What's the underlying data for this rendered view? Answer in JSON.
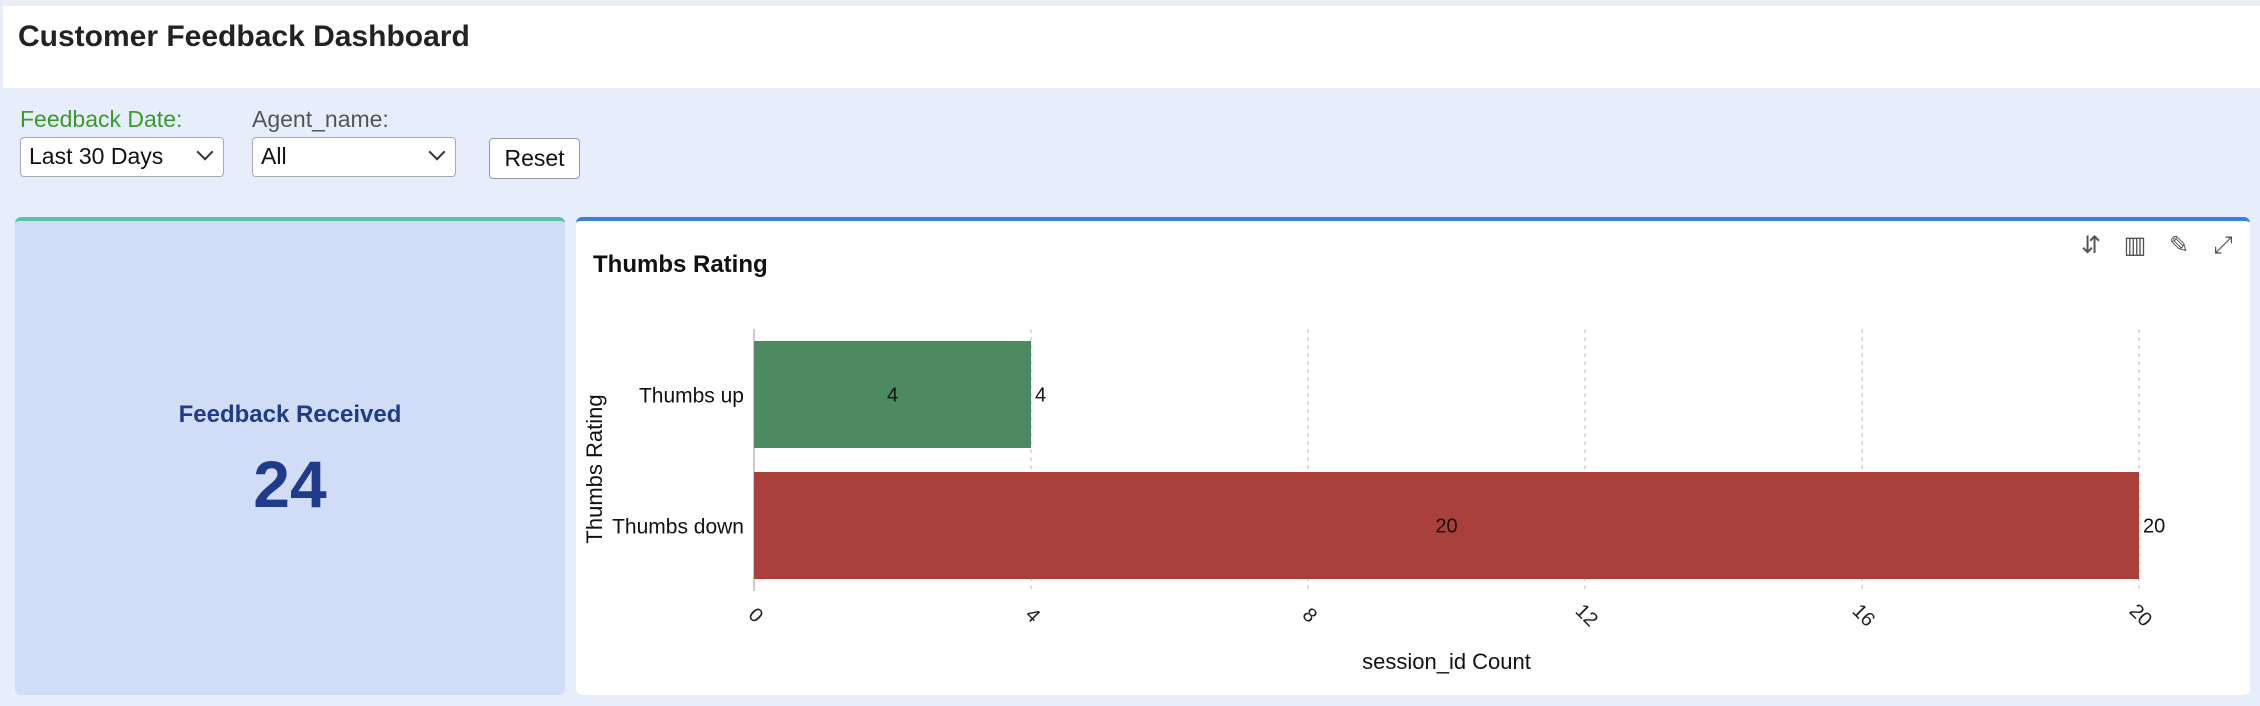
{
  "header": {
    "title": "Customer Feedback Dashboard"
  },
  "filters": {
    "feedback_date": {
      "label": "Feedback Date:",
      "value": "Last 30 Days",
      "label_color": "#3a9a2a"
    },
    "agent_name": {
      "label": "Agent_name:",
      "value": "All"
    },
    "reset_label": "Reset"
  },
  "kpi": {
    "label": "Feedback Received",
    "value": "24"
  },
  "chart_panel": {
    "title": "Thumbs Rating",
    "toolbar": [
      "sort-icon",
      "bar-chart-icon",
      "chart-options-icon",
      "expand-icon"
    ],
    "toolbar_glyphs": [
      "⇵",
      "▥",
      "✎",
      "⤢"
    ]
  },
  "chart_data": {
    "type": "bar",
    "orientation": "horizontal",
    "title": "Thumbs Rating",
    "xlabel": "session_id Count",
    "ylabel": "Thumbs Rating",
    "categories": [
      "Thumbs up",
      "Thumbs down"
    ],
    "values": [
      4,
      20
    ],
    "colors": [
      "#4e8a61",
      "#aa403b"
    ],
    "xlim": [
      0,
      20
    ],
    "xticks": [
      "0",
      "4",
      "8",
      "12",
      "16",
      "20"
    ],
    "grid": true,
    "legend": "none"
  }
}
